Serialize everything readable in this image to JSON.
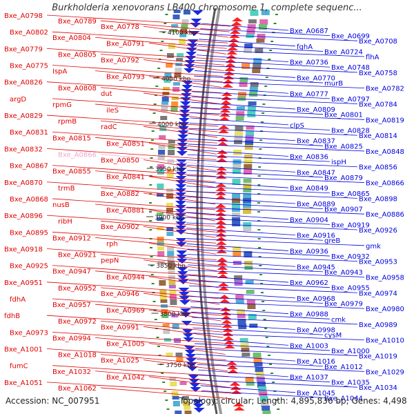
{
  "title": "Burkholderia xenovorans LB400 chromosome 1, complete sequenc...",
  "footer": {
    "accession": "Accession: NC_007951",
    "summary": "Topology: circular; Length: 4,895,836 bp; Genes: 4,498"
  },
  "colors": {
    "left_labels": "#e00000",
    "right_labels": "#0000e0",
    "faded_label": "#f4a6c8",
    "backbone": "#888888",
    "tick": "#2a8a2a"
  },
  "ticks": [
    "4100 kbp",
    "4050 kbp",
    "4000 kbp",
    "3950 kbp",
    "3900 kbp",
    "3850 kbp",
    "3800 kbp",
    "3750 kbp"
  ],
  "left_labels": [
    "Bxe_A0798",
    "Bxe_A0789",
    "Bxe_A0778",
    "Bxe_A0802",
    "Bxe_A0804",
    "Bxe_A0791",
    "Bxe_A0779",
    "Bxe_A0805",
    "Bxe_A0792",
    "Bxe_A0775",
    "IspA",
    "Bxe_A0793",
    "Bxe_A0826",
    "Bxe_A0808",
    "dut",
    "argD",
    "rpmG",
    "ileS",
    "Bxe_A0829",
    "rpmB",
    "radC",
    "Bxe_A0831",
    "Bxe_A0815",
    "Bxe_A0851",
    "Bxe_A0832",
    "Bxe_A0866",
    "Bxe_A0850",
    "Bxe_A0867",
    "Bxe_A0855",
    "Bxe_A0841",
    "Bxe_A0870",
    "trmB",
    "Bxe_A0882",
    "Bxe_A0868",
    "nusB",
    "Bxe_A0881",
    "Bxe_A0896",
    "ribH",
    "Bxe_A0902",
    "Bxe_A0895",
    "Bxe_A0912",
    "rph",
    "Bxe_A0918",
    "Bxe_A0921",
    "pepN",
    "Bxe_A0925",
    "Bxe_A0947",
    "Bxe_A0944",
    "Bxe_A0951",
    "Bxe_A0952",
    "Bxe_A0946",
    "fdhA",
    "Bxe_A0957",
    "Bxe_A0969",
    "fdhB",
    "Bxe_A0972",
    "Bxe_A0991",
    "Bxe_A0973",
    "Bxe_A0994",
    "Bxe_A1005",
    "Bxe_A1001",
    "Bxe_A1018",
    "Bxe_A1025",
    "fumC",
    "Bxe_A1032",
    "Bxe_A1042",
    "Bxe_A1051",
    "Bxe_A1062"
  ],
  "right_labels": [
    "Bxe_A0687",
    "Bxe_A0699",
    "Bxe_A0708",
    "fghA",
    "Bxe_A0724",
    "flhA",
    "Bxe_A0736",
    "Bxe_A0748",
    "Bxe_A0758",
    "Bxe_A0770",
    "murB",
    "Bxe_A0782",
    "Bxe_A0777",
    "Bxe_A0797",
    "Bxe_A0784",
    "Bxe_A0809",
    "Bxe_A0801",
    "Bxe_A0819",
    "clpS",
    "Bxe_A0828",
    "Bxe_A0814",
    "Bxe_A0837",
    "Bxe_A0825",
    "Bxe_A0848",
    "Bxe_A0836",
    "ispH",
    "Bxe_A0856",
    "Bxe_A0847",
    "Bxe_A0879",
    "Bxe_A0866",
    "Bxe_A0849",
    "Bxe_A0865",
    "Bxe_A0898",
    "Bxe_A0889",
    "Bxe_A0907",
    "Bxe_A0886",
    "Bxe_A0904",
    "Bxe_A0919",
    "Bxe_A0926",
    "Bxe_A0916",
    "greB",
    "gmk",
    "Bxe_A0936",
    "Bxe_A0932",
    "Bxe_A0953",
    "Bxe_A0945",
    "Bxe_A0943",
    "Bxe_A0958",
    "Bxe_A0962",
    "Bxe_A0955",
    "Bxe_A0974",
    "Bxe_A0968",
    "Bxe_A0979",
    "Bxe_A0980",
    "Bxe_A0988",
    "cmk",
    "Bxe_A0989",
    "Bxe_A0998",
    "cysM",
    "Bxe_A1010",
    "Bxe_A1003",
    "Bxe_A1000",
    "Bxe_A1019",
    "Bxe_A1016",
    "Bxe_A1012",
    "Bxe_A1029",
    "Bxe_A1037",
    "Bxe_A1035",
    "Bxe_A1034",
    "Bxe_A1045",
    "Bxe_A1044"
  ]
}
